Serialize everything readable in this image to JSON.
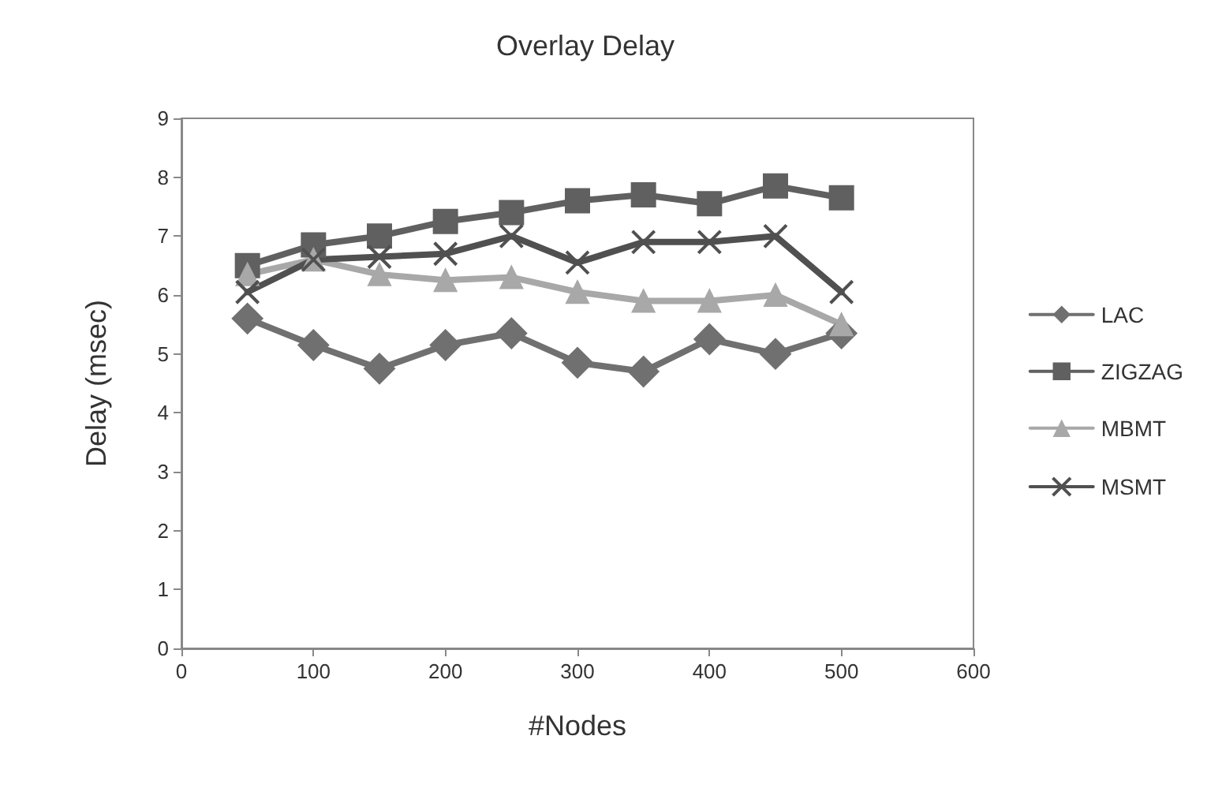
{
  "chart_data": {
    "type": "line",
    "title": "Overlay Delay",
    "xlabel": "#Nodes",
    "ylabel": "Delay (msec)",
    "x": [
      50,
      100,
      150,
      200,
      250,
      300,
      350,
      400,
      450,
      500
    ],
    "xlim": [
      0,
      600
    ],
    "xticks": [
      0,
      100,
      200,
      300,
      400,
      500,
      600
    ],
    "ylim": [
      0,
      9
    ],
    "yticks": [
      0,
      1,
      2,
      3,
      4,
      5,
      6,
      7,
      8,
      9
    ],
    "grid": false,
    "legend": "right",
    "series": [
      {
        "name": "LAC",
        "color": "#707070",
        "marker": "diamond",
        "values": [
          5.6,
          5.15,
          4.75,
          5.15,
          5.35,
          4.85,
          4.7,
          5.25,
          5.0,
          5.35
        ]
      },
      {
        "name": "ZIGZAG",
        "color": "#606060",
        "marker": "square",
        "values": [
          6.5,
          6.85,
          7.0,
          7.25,
          7.4,
          7.6,
          7.7,
          7.55,
          7.85,
          7.65
        ]
      },
      {
        "name": "MBMT",
        "color": "#a8a8a8",
        "marker": "triangle",
        "values": [
          6.35,
          6.6,
          6.35,
          6.25,
          6.3,
          6.05,
          5.9,
          5.9,
          6.0,
          5.5
        ]
      },
      {
        "name": "MSMT",
        "color": "#505050",
        "marker": "cross",
        "values": [
          6.05,
          6.6,
          6.65,
          6.7,
          7.0,
          6.55,
          6.9,
          6.9,
          7.0,
          6.05
        ]
      }
    ]
  }
}
